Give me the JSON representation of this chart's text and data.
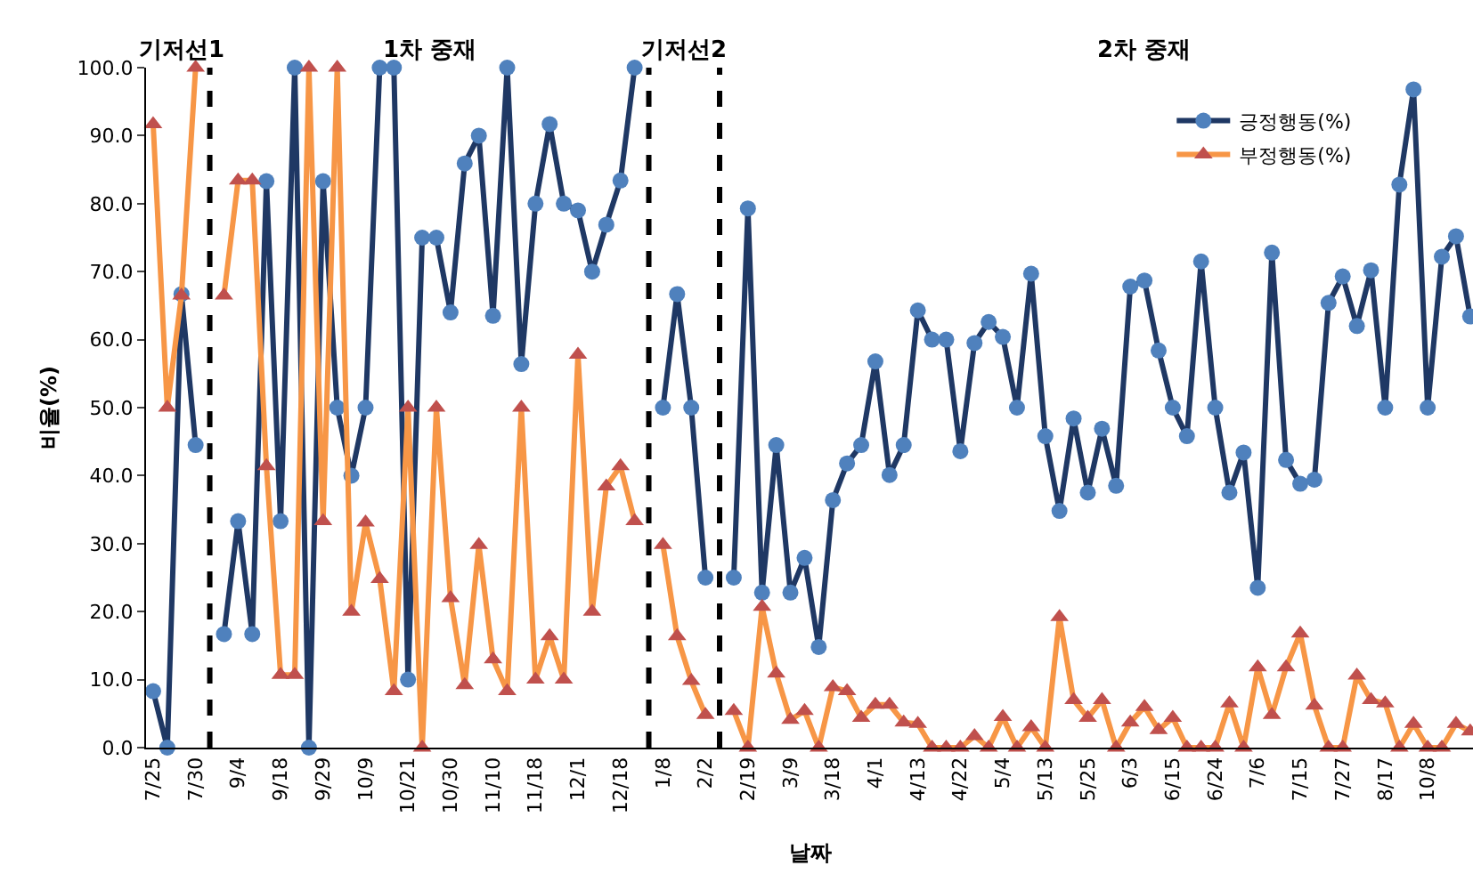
{
  "chart_data": {
    "type": "line",
    "xlabel": "날짜",
    "ylabel": "비율(%)",
    "categories": [
      "7/25",
      null,
      null,
      "7/30",
      null,
      null,
      "9/4",
      null,
      null,
      "9/18",
      null,
      null,
      "9/29",
      null,
      null,
      "10/9",
      null,
      null,
      "10/21",
      null,
      null,
      "10/30",
      null,
      null,
      "11/10",
      null,
      null,
      "11/18",
      null,
      null,
      "12/1",
      null,
      null,
      "12/18",
      null,
      null,
      "1/8",
      null,
      null,
      "2/2",
      null,
      null,
      "2/19",
      null,
      null,
      "3/9",
      null,
      null,
      "3/18",
      null,
      null,
      "4/1",
      null,
      null,
      "4/13",
      null,
      null,
      "4/22",
      null,
      null,
      "5/4",
      null,
      null,
      "5/13",
      null,
      null,
      "5/25",
      null,
      null,
      "6/3",
      null,
      null,
      "6/15",
      null,
      null,
      "6/24",
      null,
      null,
      "7/6",
      null,
      null,
      "7/15",
      null,
      null,
      "7/27",
      null,
      null,
      "8/17",
      null,
      null,
      "10/8",
      null,
      null,
      null
    ],
    "series": [
      {
        "name": "긍정행동(%)",
        "color": "#1f3864",
        "marker": "circle",
        "values": [
          8.3,
          0,
          66.7,
          44.5,
          null,
          16.7,
          33.3,
          16.7,
          83.3,
          33.3,
          100,
          0,
          83.3,
          50,
          40,
          50,
          100,
          100,
          10,
          75,
          75,
          64,
          85.9,
          90,
          63.5,
          100,
          56.4,
          80,
          91.7,
          80,
          79,
          70,
          76.9,
          83.4,
          100,
          null,
          50,
          66.7,
          50,
          25,
          null,
          25,
          79.3,
          22.8,
          44.5,
          22.8,
          27.9,
          14.8,
          36.4,
          41.8,
          44.5,
          56.8,
          40.1,
          44.5,
          64.3,
          60,
          60,
          43.6,
          59.5,
          62.6,
          60.4,
          50,
          69.7,
          45.8,
          34.8,
          48.4,
          37.5,
          46.9,
          38.5,
          67.8,
          68.7,
          58.4,
          50,
          45.8,
          71.5,
          50,
          37.5,
          43.4,
          23.5,
          72.8,
          42.3,
          38.8,
          39.4,
          65.4,
          69.3,
          62,
          70.2,
          50,
          82.8,
          96.8,
          50,
          72.2,
          75.2,
          63.4
        ]
      },
      {
        "name": "부정행동(%)",
        "color": "#f79646",
        "marker": "triangle",
        "values": [
          91.7,
          50,
          66.5,
          100,
          null,
          66.5,
          83.4,
          83.4,
          41.4,
          10.7,
          10.7,
          100,
          33.3,
          100,
          20,
          33.1,
          24.8,
          8.3,
          50,
          0,
          50,
          22,
          9.2,
          29.8,
          13,
          8.3,
          50,
          10,
          16.4,
          10,
          57.8,
          20,
          38.4,
          41.4,
          33.3,
          null,
          29.8,
          16.4,
          9.8,
          4.8,
          null,
          5.4,
          0,
          20.7,
          10.9,
          4.1,
          5.4,
          0,
          8.9,
          8.3,
          4.4,
          6.3,
          6.3,
          3.7,
          3.5,
          0,
          0,
          0,
          1.7,
          0,
          4.5,
          0,
          3,
          0,
          19.2,
          7,
          4.4,
          7,
          0,
          3.7,
          6,
          2.6,
          4.4,
          0,
          0,
          0,
          6.5,
          0,
          11.8,
          4.8,
          11.8,
          16.8,
          6.2,
          0,
          0,
          10.6,
          7,
          6.5,
          0,
          3.5,
          0,
          0,
          3.5,
          2.4
        ]
      }
    ],
    "ylim": [
      0,
      100
    ],
    "yticks": [
      {
        "value": 0,
        "label": "0.0"
      },
      {
        "value": 10,
        "label": "10.0"
      },
      {
        "value": 20,
        "label": "20.0"
      },
      {
        "value": 30,
        "label": "30.0"
      },
      {
        "value": 40,
        "label": "40.0"
      },
      {
        "value": 50,
        "label": "50.0"
      },
      {
        "value": 60,
        "label": "60.0"
      },
      {
        "value": 70,
        "label": "70.0"
      },
      {
        "value": 80,
        "label": "80.0"
      },
      {
        "value": 90,
        "label": "90.0"
      },
      {
        "value": 100,
        "label": "100.0"
      }
    ],
    "annotations": [
      "기저선1",
      "1차 중재",
      "기저선2",
      "2차 중재"
    ],
    "legend": "top right",
    "line_style": "solid"
  }
}
